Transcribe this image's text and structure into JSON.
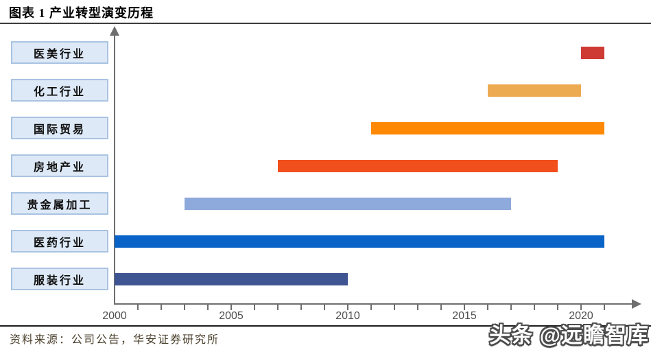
{
  "header": {
    "title": "图表 1 产业转型演变历程"
  },
  "footer": {
    "source": "资料来源：公司公告，华安证券研究所",
    "watermark": "头条 @远瞻智库"
  },
  "colors": {
    "category_box_fill": "#dee9f7",
    "category_box_border": "#a9c3e2",
    "axis": "#6e6e6e",
    "tick_label_text": "#4f4f4f",
    "source_text": "#4a3f2c",
    "title_text": "#000000",
    "watermark_fill": "#ffffff",
    "watermark_outline": "#4c4c4c"
  },
  "chart_data": {
    "type": "bar",
    "subtype": "gantt-timeline",
    "orientation": "horizontal",
    "title": "图表 1 产业转型演变历程",
    "grid": false,
    "legend": false,
    "x_axis": {
      "units": "year",
      "min": 2000,
      "max": 2022,
      "minor_tick_interval": 1,
      "last_minor_tick_year": 2021,
      "tick_labels": [
        "2000",
        "2005",
        "2010",
        "2015",
        "2020"
      ],
      "tick_label_years": [
        2000,
        2005,
        2010,
        2015,
        2020
      ],
      "arrow": true
    },
    "categories": [
      "医美行业",
      "化工行业",
      "国际贸易",
      "房地产业",
      "贵金属加工",
      "医药行业",
      "服装行业"
    ],
    "series": [
      {
        "category": "医美行业",
        "start_year": 2020,
        "end_year": 2021,
        "color": "#ce3a34"
      },
      {
        "category": "化工行业",
        "start_year": 2016,
        "end_year": 2020,
        "color": "#ecab51"
      },
      {
        "category": "国际贸易",
        "start_year": 2011,
        "end_year": 2021,
        "color": "#ff8905"
      },
      {
        "category": "房地产业",
        "start_year": 2007,
        "end_year": 2019,
        "color": "#f14f1c"
      },
      {
        "category": "贵金属加工",
        "start_year": 2003,
        "end_year": 2017,
        "color": "#8ea9db"
      },
      {
        "category": "医药行业",
        "start_year": 2000,
        "end_year": 2021,
        "color": "#0a63c6"
      },
      {
        "category": "服装行业",
        "start_year": 2000,
        "end_year": 2010,
        "color": "#3f5591"
      }
    ]
  }
}
